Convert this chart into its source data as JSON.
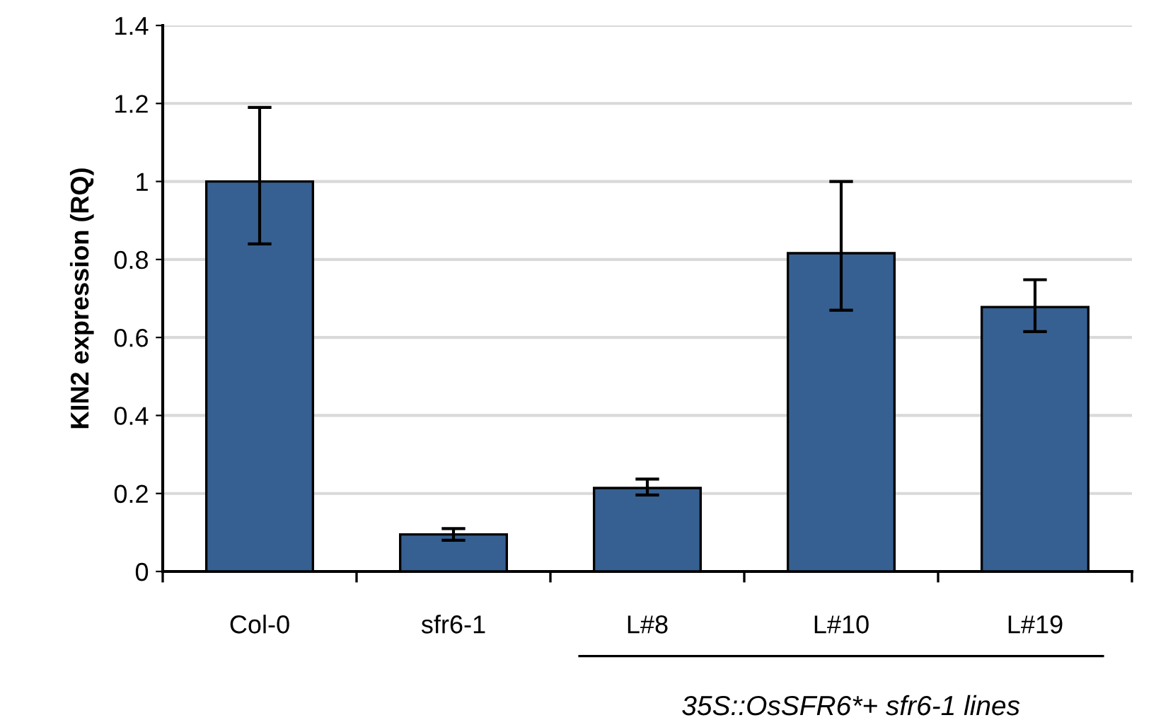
{
  "chart_data": {
    "type": "bar",
    "ylabel": "KIN2 expression (RQ)",
    "categories": [
      "Col-0",
      "sfr6-1",
      "L#8",
      "L#10",
      "L#19"
    ],
    "values": [
      1.0,
      0.095,
      0.214,
      0.816,
      0.678
    ],
    "errors": [
      [
        0.84,
        1.19
      ],
      [
        0.08,
        0.11
      ],
      [
        0.196,
        0.237
      ],
      [
        0.67,
        1.0
      ],
      [
        0.615,
        0.748
      ]
    ],
    "color": "#376092",
    "ylim": [
      0,
      1.4
    ],
    "yticks": [
      0,
      0.2,
      0.4,
      0.6,
      0.8,
      1,
      1.2,
      1.4
    ],
    "grid": "y",
    "annotations": [
      "35S::OsSFR6*+ sfr6-1 lines"
    ]
  }
}
